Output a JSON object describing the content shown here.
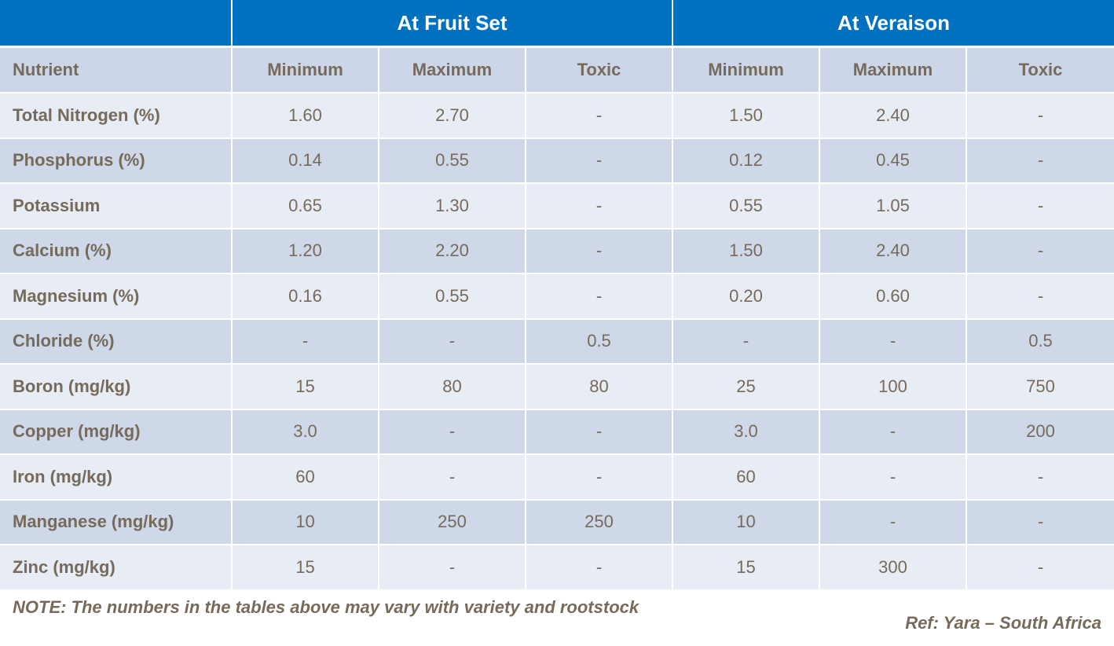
{
  "table": {
    "group_headers": [
      "At Fruit Set",
      "At Veraison"
    ],
    "columns": [
      "Nutrient",
      "Minimum",
      "Maximum",
      "Toxic",
      "Minimum",
      "Maximum",
      "Toxic"
    ],
    "rows": [
      [
        "Total Nitrogen (%)",
        "1.60",
        "2.70",
        "-",
        "1.50",
        "2.40",
        "-"
      ],
      [
        "Phosphorus (%)",
        "0.14",
        "0.55",
        "-",
        "0.12",
        "0.45",
        "-"
      ],
      [
        "Potassium",
        "0.65",
        "1.30",
        "-",
        "0.55",
        "1.05",
        "-"
      ],
      [
        "Calcium (%)",
        "1.20",
        "2.20",
        "-",
        "1.50",
        "2.40",
        "-"
      ],
      [
        "Magnesium (%)",
        "0.16",
        "0.55",
        "-",
        "0.20",
        "0.60",
        "-"
      ],
      [
        "Chloride (%)",
        "-",
        "-",
        "0.5",
        "-",
        "-",
        "0.5"
      ],
      [
        "Boron (mg/kg)",
        "15",
        "80",
        "80",
        "25",
        "100",
        "750"
      ],
      [
        "Copper (mg/kg)",
        "3.0",
        "-",
        "-",
        "3.0",
        "-",
        "200"
      ],
      [
        "Iron (mg/kg)",
        "60",
        "-",
        "-",
        "60",
        "-",
        "-"
      ],
      [
        "Manganese (mg/kg)",
        "10",
        "250",
        "250",
        "10",
        "-",
        "-"
      ],
      [
        "Zinc (mg/kg)",
        "15",
        "-",
        "-",
        "15",
        "300",
        "-"
      ]
    ]
  },
  "note": "NOTE: The numbers in the tables above may vary with variety and rootstock",
  "reference": "Ref: Yara – South Africa"
}
